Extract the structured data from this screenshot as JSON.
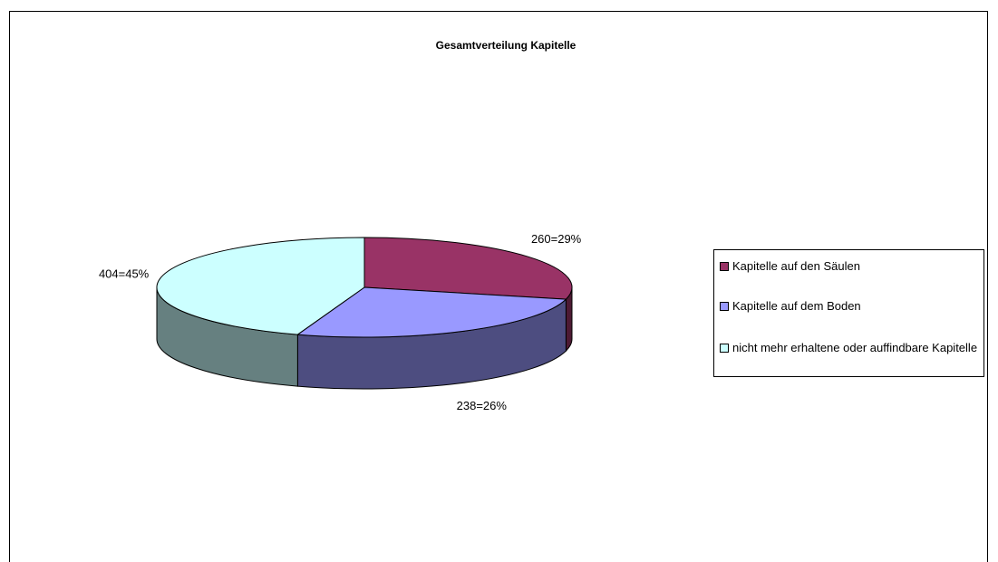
{
  "chart_data": {
    "type": "pie",
    "title": "Gesamtverteilung Kapitelle",
    "categories": [
      "Kapitelle auf den Säulen",
      "Kapitelle auf dem Boden",
      "nicht mehr erhaltene oder auffindbare Kapitelle"
    ],
    "values": [
      260,
      238,
      404
    ],
    "value_labels": [
      "260=29%",
      "238=26%",
      "404=45%"
    ],
    "colors": [
      "#993366",
      "#9999ff",
      "#ccffff"
    ],
    "legend": "right"
  }
}
